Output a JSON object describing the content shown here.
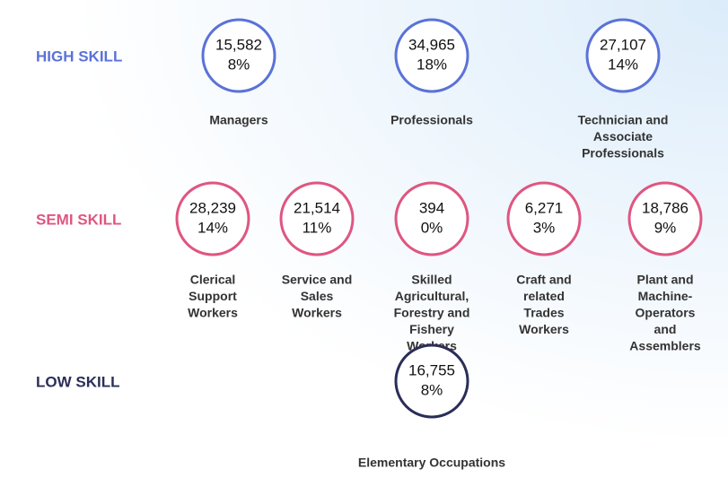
{
  "groups": [
    {
      "label": "HIGH SKILL",
      "color": "#5b72d8",
      "items": [
        {
          "count": "15,582",
          "percent": "8%",
          "name": [
            "Managers"
          ]
        },
        {
          "count": "34,965",
          "percent": "18%",
          "name": [
            "Professionals"
          ]
        },
        {
          "count": "27,107",
          "percent": "14%",
          "name": [
            "Technician and",
            "Associate",
            "Professionals"
          ]
        }
      ]
    },
    {
      "label": "SEMI SKILL",
      "color": "#df5680",
      "items": [
        {
          "count": "28,239",
          "percent": "14%",
          "name": [
            "Clerical",
            "Support",
            "Workers"
          ]
        },
        {
          "count": "21,514",
          "percent": "11%",
          "name": [
            "Service and",
            "Sales",
            "Workers"
          ]
        },
        {
          "count": "394",
          "percent": "0%",
          "name": [
            "Skilled",
            "Agricultural,",
            "Forestry and",
            "Fishery",
            "Workers"
          ]
        },
        {
          "count": "6,271",
          "percent": "3%",
          "name": [
            "Craft and",
            "related",
            "Trades",
            "Workers"
          ]
        },
        {
          "count": "18,786",
          "percent": "9%",
          "name": [
            "Plant and",
            "Machine-",
            "Operators",
            "and",
            "Assemblers"
          ]
        }
      ]
    },
    {
      "label": "LOW SKILL",
      "color": "#2a2e57",
      "items": [
        {
          "count": "16,755",
          "percent": "8%",
          "name": [
            "Elementary Occupations"
          ]
        }
      ]
    }
  ]
}
